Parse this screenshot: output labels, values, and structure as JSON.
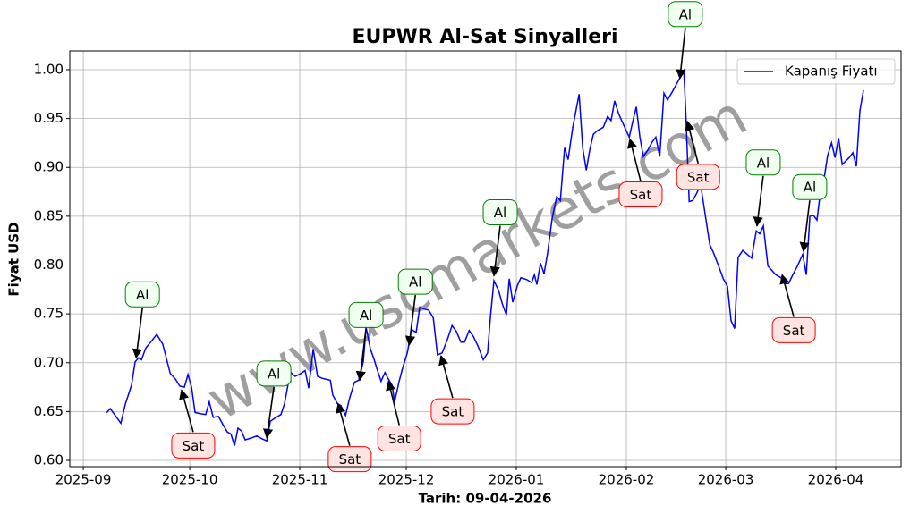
{
  "chart_data": {
    "type": "line",
    "title": "EUPWR Al-Sat Sinyalleri",
    "xlabel": "Tarih: 09-04-2026",
    "ylabel": "Fiyat USD",
    "watermark": "www.uscmarkets.com",
    "grid": true,
    "legend": "upper right",
    "xlim": [
      -3.8,
      230.4
    ],
    "ylim": [
      0.5936,
      1.0192
    ],
    "xticks": [
      {
        "value": 0,
        "label": "2025-09"
      },
      {
        "value": 30,
        "label": "2025-10"
      },
      {
        "value": 61,
        "label": "2025-11"
      },
      {
        "value": 91,
        "label": "2025-12"
      },
      {
        "value": 122,
        "label": "2026-01"
      },
      {
        "value": 153,
        "label": "2026-02"
      },
      {
        "value": 181,
        "label": "2026-03"
      },
      {
        "value": 212,
        "label": "2026-04"
      }
    ],
    "yticks": [
      {
        "value": 0.6,
        "label": "0.60"
      },
      0.65,
      {
        "value": 0.7,
        "label": "0.70"
      },
      0.75,
      {
        "value": 0.8,
        "label": "0.80"
      },
      0.85,
      {
        "value": 0.9,
        "label": "0.90"
      },
      0.95,
      {
        "value": 1.0,
        "label": "1.00"
      }
    ],
    "x": [
      6.6,
      7.6,
      8.8,
      10.6,
      11.8,
      13.6,
      14.6,
      15.6,
      16.4,
      17.6,
      19.2,
      20.7,
      22.4,
      24.5,
      26.0,
      27.2,
      28.5,
      29.5,
      30.5,
      31.5,
      32.8,
      34.5,
      35.5,
      36.6,
      38.1,
      39.3,
      40.6,
      41.6,
      42.6,
      43.6,
      44.6,
      45.6,
      47.4,
      48.9,
      50.4,
      51.7,
      52.7,
      53.9,
      55.7,
      56.7,
      57.7,
      58.5,
      59.7,
      61.3,
      62.5,
      63.5,
      64.8,
      66.0,
      67.3,
      69.6,
      70.3,
      71.6,
      72.6,
      73.9,
      74.9,
      76.4,
      77.6,
      78.9,
      79.7,
      80.9,
      81.9,
      82.9,
      83.9,
      85.0,
      86.0,
      87.0,
      87.7,
      89.0,
      90.0,
      91.3,
      92.5,
      93.8,
      94.8,
      96.0,
      97.3,
      98.6,
      99.8,
      101.1,
      102.6,
      103.9,
      105.1,
      106.4,
      107.4,
      108.7,
      109.9,
      111.2,
      112.7,
      113.9,
      114.7,
      115.7,
      117.0,
      118.0,
      119.2,
      120.0,
      121.0,
      122.3,
      123.3,
      125.0,
      126.3,
      127.1,
      127.8,
      128.8,
      129.8,
      130.8,
      132.1,
      133.4,
      134.4,
      135.6,
      136.6,
      137.9,
      139.7,
      140.7,
      141.7,
      142.7,
      143.7,
      145.0,
      146.5,
      147.7,
      148.7,
      149.7,
      150.8,
      152.3,
      153.8,
      154.5,
      155.8,
      156.8,
      157.8,
      159.1,
      160.3,
      161.3,
      162.4,
      163.6,
      164.6,
      165.9,
      167.1,
      169.2,
      169.7,
      170.7,
      171.7,
      172.9,
      173.9,
      175.0,
      176.5,
      177.5,
      179.0,
      180.3,
      181.5,
      182.5,
      183.5,
      184.5,
      185.8,
      188.3,
      189.6,
      190.6,
      191.6,
      192.9,
      193.9,
      195.1,
      196.6,
      197.6,
      198.7,
      199.9,
      201.2,
      202.7,
      203.7,
      204.7,
      205.7,
      206.7,
      207.7,
      208.7,
      209.7,
      210.8,
      211.8,
      212.8,
      213.8,
      215.8,
      216.8,
      217.8,
      218.8,
      219.8
    ],
    "series": [
      {
        "name": "Kapanış Fiyatı",
        "color": "#0000ff",
        "values": [
          0.649,
          0.653,
          0.647,
          0.638,
          0.657,
          0.677,
          0.701,
          0.705,
          0.703,
          0.715,
          0.722,
          0.729,
          0.719,
          0.689,
          0.683,
          0.676,
          0.675,
          0.688,
          0.675,
          0.649,
          0.648,
          0.647,
          0.66,
          0.644,
          0.645,
          0.637,
          0.629,
          0.627,
          0.615,
          0.633,
          0.63,
          0.621,
          0.623,
          0.625,
          0.622,
          0.62,
          0.64,
          0.643,
          0.647,
          0.658,
          0.678,
          0.69,
          0.686,
          0.689,
          0.692,
          0.674,
          0.714,
          0.686,
          0.684,
          0.682,
          0.667,
          0.658,
          0.656,
          0.646,
          0.662,
          0.68,
          0.682,
          0.701,
          0.736,
          0.714,
          0.704,
          0.692,
          0.681,
          0.69,
          0.683,
          0.677,
          0.66,
          0.681,
          0.695,
          0.71,
          0.734,
          0.731,
          0.757,
          0.755,
          0.754,
          0.746,
          0.708,
          0.71,
          0.724,
          0.738,
          0.732,
          0.721,
          0.721,
          0.733,
          0.727,
          0.717,
          0.703,
          0.71,
          0.747,
          0.784,
          0.774,
          0.761,
          0.749,
          0.786,
          0.762,
          0.779,
          0.787,
          0.785,
          0.782,
          0.79,
          0.78,
          0.802,
          0.791,
          0.812,
          0.848,
          0.87,
          0.866,
          0.92,
          0.908,
          0.941,
          0.975,
          0.92,
          0.897,
          0.918,
          0.934,
          0.938,
          0.941,
          0.952,
          0.948,
          0.968,
          0.955,
          0.943,
          0.931,
          0.942,
          0.962,
          0.931,
          0.911,
          0.918,
          0.926,
          0.931,
          0.911,
          0.976,
          0.969,
          0.977,
          0.985,
          0.999,
          0.961,
          0.865,
          0.866,
          0.874,
          0.883,
          0.857,
          0.821,
          0.813,
          0.799,
          0.786,
          0.778,
          0.743,
          0.735,
          0.808,
          0.815,
          0.807,
          0.835,
          0.832,
          0.84,
          0.799,
          0.795,
          0.79,
          0.787,
          0.781,
          0.781,
          0.79,
          0.799,
          0.811,
          0.79,
          0.85,
          0.851,
          0.846,
          0.876,
          0.888,
          0.912,
          0.925,
          0.91,
          0.93,
          0.903,
          0.91,
          0.915,
          0.901,
          0.958,
          0.979
        ]
      }
    ],
    "annotations": [
      {
        "text": "Al",
        "x": 14.9,
        "y": 0.705,
        "edgecolor": "#008000",
        "facecolor": "#f0fff0"
      },
      {
        "text": "Sat",
        "x": 27.7,
        "y": 0.672,
        "edgecolor": "#ff0000",
        "facecolor": "#ffe4e1"
      },
      {
        "text": "Al",
        "x": 51.7,
        "y": 0.623,
        "edgecolor": "#008000",
        "facecolor": "#f0fff0"
      },
      {
        "text": "Sat",
        "x": 71.8,
        "y": 0.658,
        "edgecolor": "#ff0000",
        "facecolor": "#ffe4e1"
      },
      {
        "text": "Al",
        "x": 77.9,
        "y": 0.682,
        "edgecolor": "#008000",
        "facecolor": "#f0fff0"
      },
      {
        "text": "Sat",
        "x": 86.0,
        "y": 0.681,
        "edgecolor": "#ff0000",
        "facecolor": "#ffe4e1"
      },
      {
        "text": "Al",
        "x": 91.8,
        "y": 0.718,
        "edgecolor": "#008000",
        "facecolor": "#f0fff0"
      },
      {
        "text": "Sat",
        "x": 100.8,
        "y": 0.707,
        "edgecolor": "#ff0000",
        "facecolor": "#ffe4e1"
      },
      {
        "text": "Al",
        "x": 115.7,
        "y": 0.789,
        "edgecolor": "#008000",
        "facecolor": "#f0fff0"
      },
      {
        "text": "Sat",
        "x": 154.0,
        "y": 0.929,
        "edgecolor": "#ff0000",
        "facecolor": "#ffe4e1"
      },
      {
        "text": "Al",
        "x": 168.1,
        "y": 0.991,
        "edgecolor": "#008000",
        "facecolor": "#f0fff0"
      },
      {
        "text": "Sat",
        "x": 170.2,
        "y": 0.947,
        "edgecolor": "#ff0000",
        "facecolor": "#ffe4e1"
      },
      {
        "text": "Al",
        "x": 189.8,
        "y": 0.84,
        "edgecolor": "#008000",
        "facecolor": "#f0fff0"
      },
      {
        "text": "Sat",
        "x": 196.9,
        "y": 0.79,
        "edgecolor": "#ff0000",
        "facecolor": "#ffe4e1"
      },
      {
        "text": "Al",
        "x": 202.9,
        "y": 0.814,
        "edgecolor": "#008000",
        "facecolor": "#f0fff0"
      }
    ]
  }
}
